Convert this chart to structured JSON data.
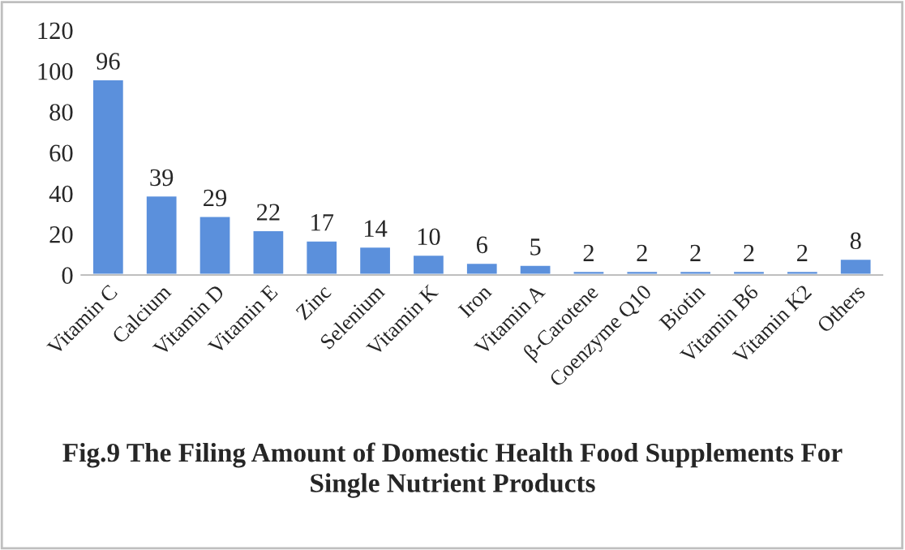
{
  "chart_data": {
    "type": "bar",
    "title": "Fig.9 The Filing Amount of Domestic Health Food Supplements For\nSingle Nutrient Products",
    "categories": [
      "Vitamin C",
      "Calcium",
      "Vitamin D",
      "Vitamin E",
      "Zinc",
      "Selenium",
      "Vitamin K",
      "Iron",
      "Vitamin A",
      "β-Carotene",
      "Coenzyme Q10",
      "Biotin",
      "Vitamin B6",
      "Vitamin K2",
      "Others"
    ],
    "values": [
      96,
      39,
      29,
      22,
      17,
      14,
      10,
      6,
      5,
      2,
      2,
      2,
      2,
      2,
      8
    ],
    "color": "#5b90dc",
    "ylim": [
      0,
      120
    ],
    "yticks": [
      0,
      20,
      40,
      60,
      80,
      100,
      120
    ],
    "data_labels": true
  }
}
